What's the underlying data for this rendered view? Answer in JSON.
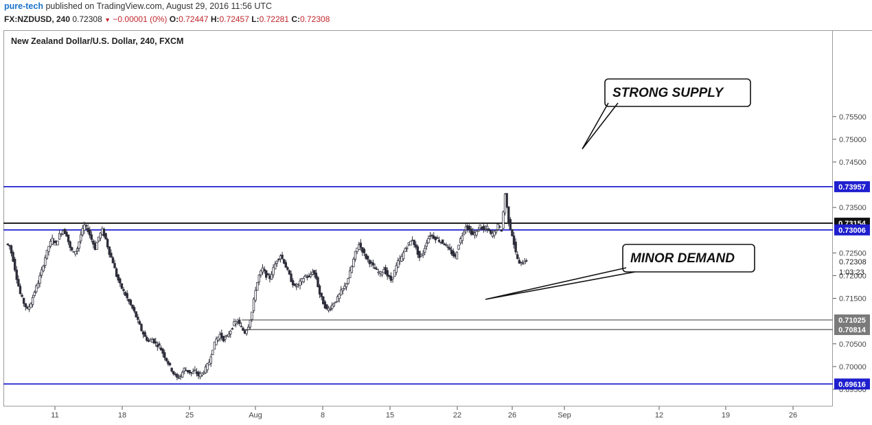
{
  "header": {
    "author": "pure-tech",
    "published_text": "published on TradingView.com, August 29, 2016 11:56 UTC",
    "symbol": "FX:NZDUSD, 240",
    "last": "0.72308",
    "change": "−0.00001 (0%)",
    "open_label": "O:",
    "open": "0.72447",
    "high_label": "H:",
    "high": "0.72457",
    "low_label": "L:",
    "low": "0.72281",
    "close_label": "C:",
    "close": "0.72308"
  },
  "chart_title": "New Zealand Dollar/U.S. Dollar, 240, FXCM",
  "colors": {
    "candle": "#2d2d3a",
    "blue_level": "#1f1fcf",
    "black_level": "#111111",
    "gray_level": "#7a7a7a",
    "price_tag_blue": "#1f1fcf",
    "price_tag_black": "#111111",
    "price_tag_gray": "#7a7a7a"
  },
  "chart_data": {
    "type": "candlestick",
    "symbol": "FX:NZDUSD",
    "timeframe": "240",
    "ylim": [
      0.693,
      0.757
    ],
    "y_ticks": [
      "0.75500",
      "0.75000",
      "0.74500",
      "0.73500",
      "0.72500",
      "0.72000",
      "0.71500",
      "0.70500",
      "0.70000",
      "0.69500"
    ],
    "x_ticks": [
      "11",
      "18",
      "25",
      "Aug",
      "8",
      "15",
      "22",
      "26",
      "Sep",
      "12",
      "19",
      "26"
    ],
    "countdown": "1:03:23",
    "last_price": "0.72308",
    "levels": [
      {
        "price": 0.73957,
        "label": "0.73957",
        "style": "blue"
      },
      {
        "price": 0.73154,
        "label": "0.73154",
        "style": "black"
      },
      {
        "price": 0.73006,
        "label": "0.73006",
        "style": "blue"
      },
      {
        "price": 0.71025,
        "label": "0.71025",
        "style": "gray"
      },
      {
        "price": 0.70814,
        "label": "0.70814",
        "style": "gray"
      },
      {
        "price": 0.69616,
        "label": "0.69616",
        "style": "blue"
      }
    ],
    "annotations": [
      {
        "text": "STRONG SUPPLY"
      },
      {
        "text": "MINOR DEMAND"
      }
    ],
    "price_path": [
      0.727,
      0.7265,
      0.7235,
      0.7195,
      0.716,
      0.714,
      0.7125,
      0.714,
      0.7165,
      0.7185,
      0.721,
      0.724,
      0.7265,
      0.728,
      0.727,
      0.729,
      0.73,
      0.729,
      0.726,
      0.725,
      0.726,
      0.729,
      0.731,
      0.73,
      0.728,
      0.726,
      0.7285,
      0.73,
      0.728,
      0.725,
      0.723,
      0.72,
      0.718,
      0.7165,
      0.715,
      0.7135,
      0.712,
      0.71,
      0.708,
      0.7065,
      0.7055,
      0.706,
      0.705,
      0.7045,
      0.703,
      0.7015,
      0.7,
      0.6985,
      0.6975,
      0.698,
      0.6995,
      0.699,
      0.6985,
      0.699,
      0.698,
      0.6985,
      0.6995,
      0.701,
      0.704,
      0.706,
      0.707,
      0.706,
      0.7065,
      0.708,
      0.7095,
      0.71,
      0.7085,
      0.7075,
      0.709,
      0.712,
      0.717,
      0.72,
      0.7215,
      0.72,
      0.7195,
      0.7215,
      0.7235,
      0.7245,
      0.723,
      0.721,
      0.719,
      0.7175,
      0.718,
      0.719,
      0.72,
      0.7195,
      0.721,
      0.7195,
      0.716,
      0.714,
      0.7125,
      0.713,
      0.714,
      0.715,
      0.7165,
      0.7175,
      0.7195,
      0.722,
      0.725,
      0.727,
      0.7255,
      0.724,
      0.723,
      0.722,
      0.721,
      0.7205,
      0.7215,
      0.72,
      0.719,
      0.721,
      0.723,
      0.724,
      0.726,
      0.727,
      0.728,
      0.726,
      0.724,
      0.725,
      0.7275,
      0.729,
      0.7285,
      0.728,
      0.7275,
      0.727,
      0.726,
      0.725,
      0.724,
      0.727,
      0.729,
      0.731,
      0.73,
      0.729,
      0.7295,
      0.731,
      0.73,
      0.7305,
      0.729,
      0.7295,
      0.731,
      0.73,
      0.738,
      0.732,
      0.729,
      0.725,
      0.7225,
      0.723,
      0.7235
    ]
  }
}
